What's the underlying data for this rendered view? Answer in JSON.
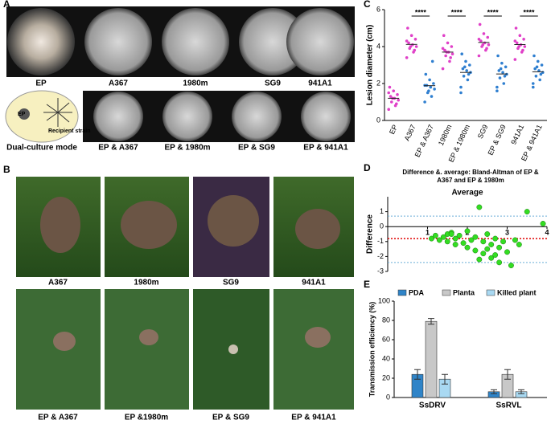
{
  "panels": {
    "A": "A",
    "B": "B",
    "C": "C",
    "D": "D",
    "E": "E"
  },
  "panel_a": {
    "row1": [
      "EP",
      "A367",
      "1980m",
      "SG9",
      "941A1"
    ],
    "diagram": {
      "ep": "EP",
      "recipient": "Recipient strain",
      "caption": "Dual-culture mode"
    },
    "row2": [
      "EP & A367",
      "EP & 1980m",
      "EP & SG9",
      "EP & 941A1"
    ]
  },
  "panel_b": {
    "row1": [
      "A367",
      "1980m",
      "SG9",
      "941A1"
    ],
    "row2": [
      "EP & A367",
      "EP &1980m",
      "EP & SG9",
      "EP & 941A1"
    ]
  },
  "chart_data": [
    {
      "type": "strip",
      "ylabel": "Lesion diameter (cm)",
      "categories": [
        "EP",
        "A367",
        "EP & A367",
        "1980m",
        "EP & 1980m",
        "SG9",
        "EP & SG9",
        "941A1",
        "EP & 941A1"
      ],
      "colors": [
        "#e040c8",
        "#e040c8",
        "#2f7fd0",
        "#e040c8",
        "#2f7fd0",
        "#e040c8",
        "#2f7fd0",
        "#e040c8",
        "#2f7fd0"
      ],
      "values": [
        [
          0.6,
          0.8,
          1.0,
          1.1,
          1.2,
          1.3,
          1.4,
          1.6,
          1.8,
          0.9,
          1.2,
          1.5
        ],
        [
          3.4,
          3.7,
          3.9,
          4.0,
          4.1,
          4.2,
          4.4,
          4.6,
          5.0,
          3.8,
          4.0,
          4.3
        ],
        [
          1.0,
          1.3,
          1.5,
          1.7,
          1.8,
          1.9,
          2.0,
          2.2,
          2.5,
          3.2,
          1.6,
          1.9
        ],
        [
          2.8,
          3.2,
          3.5,
          3.6,
          3.7,
          3.8,
          4.0,
          4.2,
          4.6,
          3.4,
          3.7,
          3.9
        ],
        [
          1.8,
          2.2,
          2.4,
          2.6,
          2.7,
          2.8,
          3.0,
          3.2,
          3.6,
          2.5,
          2.9,
          1.5
        ],
        [
          3.5,
          3.8,
          4.0,
          4.1,
          4.2,
          4.3,
          4.5,
          4.7,
          5.2,
          3.9,
          4.1,
          4.4
        ],
        [
          1.6,
          2.0,
          2.3,
          2.5,
          2.6,
          2.7,
          2.9,
          3.1,
          3.5,
          2.4,
          2.8,
          1.8
        ],
        [
          3.3,
          3.7,
          3.9,
          4.0,
          4.1,
          4.2,
          4.4,
          4.6,
          5.0,
          3.8,
          4.0,
          4.3
        ],
        [
          1.8,
          2.2,
          2.4,
          2.6,
          2.7,
          2.8,
          3.0,
          3.2,
          3.5,
          2.5,
          2.9,
          2.0
        ]
      ],
      "annotations": [
        "****",
        "****",
        "****",
        "****"
      ],
      "ylim": [
        0,
        6
      ],
      "yticks": [
        0,
        2,
        4,
        6
      ]
    },
    {
      "type": "scatter",
      "title": "Difference &. average: Bland-Altman of EP & A367  and EP & 1980m",
      "xlabel": "Average",
      "ylabel": "Difference",
      "color": "#33dd22",
      "x": [
        1.1,
        1.2,
        1.3,
        1.4,
        1.5,
        1.5,
        1.6,
        1.7,
        1.7,
        1.8,
        1.9,
        2.0,
        2.0,
        2.1,
        2.2,
        2.2,
        2.3,
        2.4,
        2.4,
        2.5,
        2.6,
        2.6,
        2.7,
        2.8,
        2.8,
        2.9,
        3.0,
        3.1,
        3.2,
        3.3,
        3.5,
        3.9,
        1.6,
        2.3,
        2.5,
        2.7
      ],
      "y": [
        -0.8,
        -0.6,
        -0.9,
        -0.7,
        -0.5,
        -1.0,
        -0.4,
        -0.8,
        -1.2,
        -0.6,
        -1.1,
        -0.3,
        -1.4,
        -0.9,
        -0.7,
        -1.6,
        1.3,
        -1.0,
        -1.8,
        -0.5,
        -1.2,
        -2.1,
        -0.8,
        -1.4,
        -2.4,
        -1.0,
        -1.7,
        -2.6,
        -0.9,
        -1.2,
        1.0,
        0.2,
        -0.5,
        -2.2,
        -1.5,
        -1.9
      ],
      "reference_lines": [
        {
          "value": 0.7,
          "color": "#6aaed6"
        },
        {
          "value": -0.8,
          "color": "#e00000"
        },
        {
          "value": -2.4,
          "color": "#6aaed6"
        }
      ],
      "xlim": [
        0,
        4
      ],
      "xticks": [
        1,
        2,
        3,
        4
      ],
      "ylim": [
        -3,
        2
      ],
      "yticks": [
        -3,
        -2,
        -1,
        0,
        1
      ]
    },
    {
      "type": "bar",
      "ylabel": "Transmission efficiency (%)",
      "categories": [
        "SsDRV",
        "SsRVL"
      ],
      "series": [
        {
          "name": "PDA",
          "color": "#2f84c8",
          "values": [
            24,
            6
          ],
          "errors": [
            5,
            2
          ]
        },
        {
          "name": "Planta",
          "color": "#c8c8c8",
          "values": [
            79,
            24
          ],
          "errors": [
            3,
            5
          ]
        },
        {
          "name": "Killed plant",
          "color": "#a9d9f2",
          "values": [
            19,
            6
          ],
          "errors": [
            5,
            2
          ]
        }
      ],
      "ylim": [
        0,
        100
      ],
      "yticks": [
        0,
        20,
        40,
        60,
        80,
        100
      ]
    }
  ]
}
